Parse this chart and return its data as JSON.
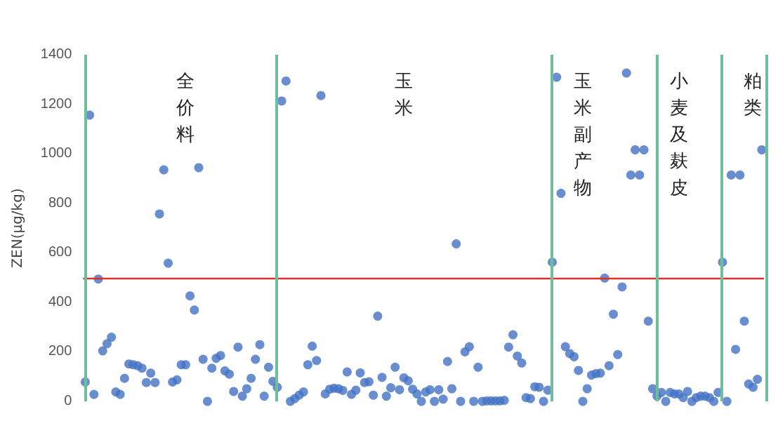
{
  "chart_data": {
    "type": "scatter",
    "ylabel": "ZEN(μg/kg)",
    "categories": [
      null,
      null,
      null,
      null,
      null,
      null,
      null,
      null,
      null,
      null,
      null,
      null,
      null,
      null,
      null,
      null,
      null,
      null,
      null,
      null,
      null,
      null,
      null,
      null,
      null,
      null,
      null,
      null,
      null,
      null,
      null,
      null,
      null,
      null,
      null,
      null,
      null,
      null,
      null,
      null,
      null,
      null,
      null,
      null,
      null,
      null,
      null,
      null,
      null,
      null,
      null,
      null,
      null,
      null,
      null,
      null,
      null,
      null,
      null,
      null,
      null,
      null,
      null,
      null,
      null,
      null,
      null,
      null,
      null,
      null,
      null,
      null,
      null,
      null,
      null,
      null,
      null,
      null,
      null,
      null,
      null,
      null,
      null,
      null,
      null,
      null,
      null,
      null,
      null,
      null,
      null,
      null,
      null,
      null,
      null,
      null,
      null,
      null,
      null,
      null,
      null,
      null,
      null,
      null,
      null,
      null,
      null,
      null,
      null,
      null,
      null,
      null,
      null,
      null,
      null,
      null,
      null,
      null,
      null,
      null,
      null,
      null,
      null,
      null,
      null,
      null,
      null,
      null,
      null,
      null,
      null,
      null,
      null,
      null,
      null,
      null,
      null,
      null,
      null,
      null,
      null,
      null,
      null,
      null,
      null,
      null,
      null,
      null,
      null,
      null,
      null,
      null,
      null,
      null,
      null,
      null
    ],
    "values": [
      78,
      1156,
      28,
      494,
      204,
      233,
      259,
      38,
      28,
      93,
      151,
      148,
      144,
      134,
      76,
      114,
      76,
      757,
      935,
      558,
      78,
      87,
      148,
      148,
      426,
      369,
      944,
      170,
      0,
      134,
      174,
      185,
      123,
      110,
      40,
      219,
      21,
      51,
      93,
      170,
      229,
      21,
      138,
      81,
      57,
      1213,
      1294,
      0,
      11,
      25,
      38,
      148,
      223,
      165,
      1235,
      30,
      49,
      53,
      51,
      44,
      119,
      28,
      45,
      115,
      76,
      79,
      25,
      344,
      97,
      21,
      55,
      138,
      47,
      95,
      83,
      49,
      30,
      0,
      38,
      47,
      0,
      47,
      9,
      161,
      51,
      636,
      0,
      200,
      221,
      0,
      138,
      0,
      2,
      2,
      2,
      2,
      4,
      219,
      269,
      183,
      155,
      15,
      11,
      59,
      57,
      0,
      45,
      562,
      1309,
      840,
      221,
      193,
      180,
      125,
      0,
      51,
      106,
      112,
      114,
      498,
      144,
      352,
      189,
      462,
      1326,
      914,
      1016,
      914,
      1016,
      324,
      51,
      21,
      36,
      0,
      36,
      30,
      30,
      15,
      40,
      0,
      15,
      21,
      21,
      15,
      0,
      36,
      562,
      0,
      914,
      210,
      914,
      324,
      70,
      57,
      89,
      1016
    ],
    "color": "#4472c4",
    "marker": "circle",
    "ylim": [
      0,
      1400
    ],
    "yticks": [
      0,
      200,
      400,
      600,
      800,
      1000,
      1200,
      1400
    ],
    "tick_labels": "y",
    "grid": false,
    "ref_lines": [
      {
        "axis": "y",
        "value": 500,
        "color": "#d9302a"
      }
    ],
    "annotations": [
      "全价料",
      "玉米",
      "玉米副产物",
      "小麦及麸皮",
      "粕类"
    ]
  }
}
